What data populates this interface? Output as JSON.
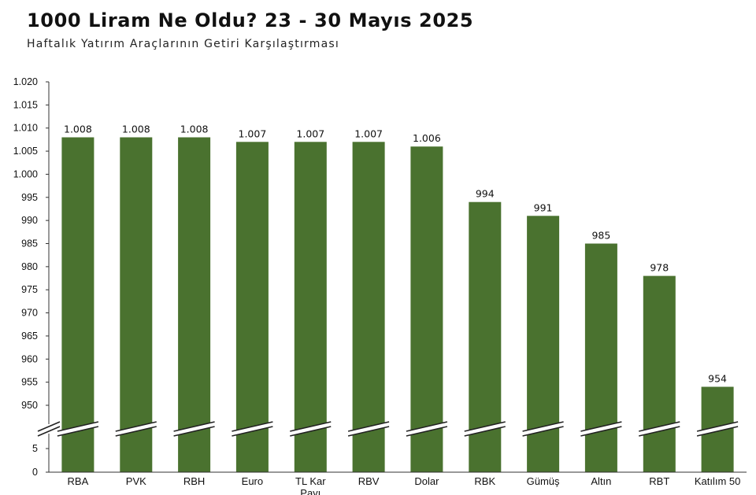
{
  "header": {
    "title": "1000 Liram Ne Oldu? 23 - 30 Mayıs 2025",
    "subtitle": "Haftalık Yatırım Araçlarının Getiri Karşılaştırması"
  },
  "chart_data": {
    "type": "bar",
    "title": "1000 Liram Ne Oldu? 23 - 30 Mayıs 2025",
    "subtitle": "Haftalık Yatırım Araçlarının Getiri Karşılaştırması",
    "categories": [
      "RBA",
      "PVK",
      "RBH",
      "Euro",
      "TL Kar Payı",
      "RBV",
      "Dolar",
      "RBK",
      "Gümüş",
      "Altın",
      "RBT",
      "Katılım 50"
    ],
    "values": [
      1008,
      1008,
      1008,
      1007,
      1007,
      1007,
      1006,
      994,
      991,
      985,
      978,
      954
    ],
    "data_labels": [
      "1.008",
      "1.008",
      "1.008",
      "1.007",
      "1.007",
      "1.007",
      "1.006",
      "994",
      "991",
      "985",
      "978",
      "954"
    ],
    "ylim": [
      0,
      1020
    ],
    "axis_break": [
      5,
      950
    ],
    "yticks_upper": [
      950,
      955,
      960,
      965,
      970,
      975,
      980,
      985,
      990,
      995,
      1000,
      1005,
      1010,
      1015,
      1020
    ],
    "ytick_labels_upper": [
      "950",
      "955",
      "960",
      "965",
      "970",
      "975",
      "980",
      "985",
      "990",
      "995",
      "1.000",
      "1.005",
      "1.010",
      "1.015",
      "1.020"
    ],
    "yticks_lower": [
      0,
      5
    ],
    "ytick_labels_lower": [
      "0",
      "5"
    ],
    "bar_color": "#4a722f",
    "grid": false,
    "legend": "none"
  }
}
